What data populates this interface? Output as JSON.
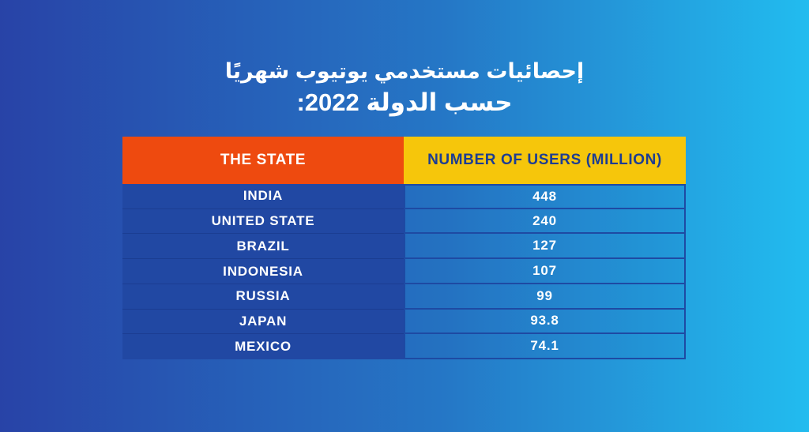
{
  "page": {
    "title_line1": "إحصائيات مستخدمي يوتيوب شهريًا",
    "title_line2": "حسب الدولة 2022:"
  },
  "table": {
    "headers": {
      "state": "THE STATE",
      "users": "NUMBER OF USERS (MILLION)"
    },
    "rows": [
      {
        "state": "INDIA",
        "users": "448"
      },
      {
        "state": "UNITED STATE",
        "users": "240"
      },
      {
        "state": "BRAZIL",
        "users": "127"
      },
      {
        "state": "INDONESIA",
        "users": "107"
      },
      {
        "state": "RUSSIA",
        "users": "99"
      },
      {
        "state": "JAPAN",
        "users": "93.8"
      },
      {
        "state": "MEXICO",
        "users": "74.1"
      }
    ]
  },
  "colors": {
    "background_gradient_left": "#2843A7",
    "background_gradient_right": "#22BCEF",
    "header_state_bg": "#EE4A0F",
    "header_users_bg": "#F6C60B",
    "header_users_text": "#1D3D92",
    "body_state_bg": "#2148A3",
    "cell_border": "#1E4AA3",
    "text_white": "#FFFFFF"
  },
  "chart_data": {
    "type": "table",
    "title": "إحصائيات مستخدمي يوتيوب شهريًا حسب الدولة 2022",
    "columns": [
      "THE STATE",
      "NUMBER OF USERS (MILLION)"
    ],
    "categories": [
      "INDIA",
      "UNITED STATE",
      "BRAZIL",
      "INDONESIA",
      "RUSSIA",
      "JAPAN",
      "MEXICO"
    ],
    "values": [
      448,
      240,
      127,
      107,
      99,
      93.8,
      74.1
    ],
    "unit": "million monthly YouTube users",
    "year": "2022"
  }
}
